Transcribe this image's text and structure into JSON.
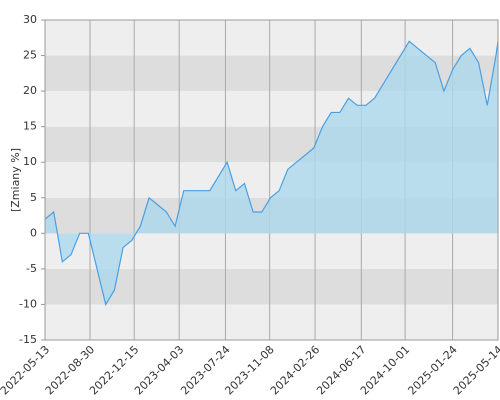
{
  "chart_data": {
    "type": "line",
    "ylabel": "[Zmiany %]",
    "x": [
      "2022-05-13",
      "2022-06-03",
      "2022-06-24",
      "2022-07-15",
      "2022-08-05",
      "2022-08-26",
      "2022-09-16",
      "2022-10-07",
      "2022-10-28",
      "2022-11-18",
      "2022-12-09",
      "2022-12-30",
      "2023-01-20",
      "2023-02-10",
      "2023-03-03",
      "2023-03-24",
      "2023-04-14",
      "2023-05-05",
      "2023-05-26",
      "2023-06-16",
      "2023-07-07",
      "2023-07-28",
      "2023-08-18",
      "2023-09-08",
      "2023-09-29",
      "2023-10-20",
      "2023-11-10",
      "2023-12-01",
      "2023-12-22",
      "2024-01-12",
      "2024-02-02",
      "2024-02-23",
      "2024-03-15",
      "2024-04-05",
      "2024-04-26",
      "2024-05-17",
      "2024-06-07",
      "2024-06-28",
      "2024-07-19",
      "2024-08-09",
      "2024-08-30",
      "2024-09-20",
      "2024-10-11",
      "2024-11-01",
      "2024-11-22",
      "2024-12-13",
      "2025-01-03",
      "2025-01-24",
      "2025-02-14",
      "2025-03-07",
      "2025-03-28",
      "2025-04-18",
      "2025-05-09",
      "2025-05-14"
    ],
    "series": [
      {
        "color": "#4a9fe3",
        "fill": "#add8ec",
        "values": [
          2,
          3,
          -4,
          -3,
          0,
          0,
          -5,
          -10,
          -8,
          -2,
          -1,
          1,
          5,
          4,
          3,
          1,
          6,
          6,
          6,
          6,
          8,
          10,
          6,
          7,
          3,
          3,
          5,
          6,
          9,
          10,
          11,
          12,
          15,
          17,
          17,
          19,
          18,
          18,
          19,
          21,
          23,
          25,
          27,
          26,
          25,
          24,
          20,
          23,
          25,
          26,
          24,
          18,
          25,
          27
        ]
      }
    ],
    "xlim": [
      "2022-05-13",
      "2025-05-14"
    ],
    "xticks": [
      "2022-05-13",
      "2022-08-30",
      "2022-12-15",
      "2023-04-03",
      "2023-07-24",
      "2023-11-08",
      "2024-02-26",
      "2024-06-17",
      "2024-10-01",
      "2025-01-24",
      "2025-05-14"
    ],
    "ylim": [
      -15,
      30
    ],
    "yticks": [
      -15,
      -10,
      -5,
      0,
      5,
      10,
      15,
      20,
      25,
      30
    ],
    "band_colors": [
      "#eeeeee",
      "#dddddd"
    ],
    "grid": true
  }
}
